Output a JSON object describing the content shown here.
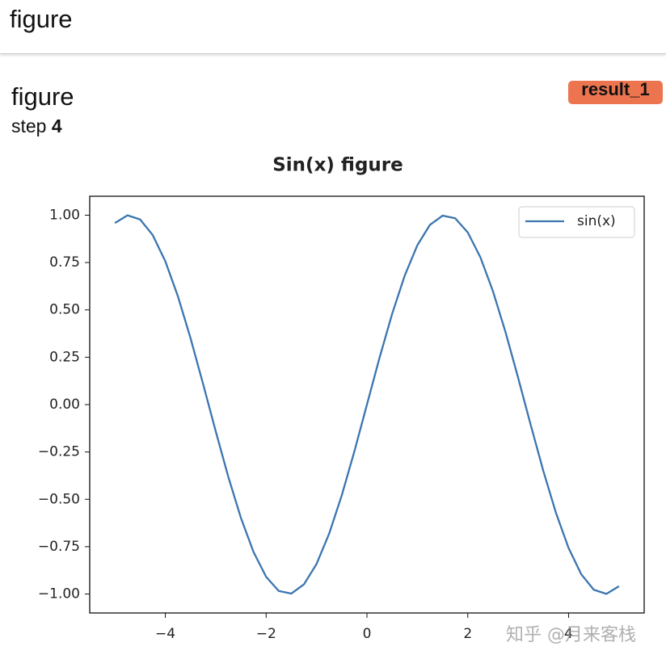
{
  "header": {
    "title": "figure"
  },
  "card": {
    "title": "figure",
    "step_label": "step",
    "step": 4,
    "tag": "result_1"
  },
  "watermark": "知乎 @月来客栈",
  "chart_data": {
    "type": "line",
    "title": "Sin(x) figure",
    "x": [
      -5,
      -4.75,
      -4.5,
      -4.25,
      -4,
      -3.75,
      -3.5,
      -3.25,
      -3,
      -2.75,
      -2.5,
      -2.25,
      -2,
      -1.75,
      -1.5,
      -1.25,
      -1,
      -0.75,
      -0.5,
      -0.25,
      0,
      0.25,
      0.5,
      0.75,
      1,
      1.25,
      1.5,
      1.75,
      2,
      2.25,
      2.5,
      2.75,
      3,
      3.25,
      3.5,
      3.75,
      4,
      4.25,
      4.5,
      4.75,
      5
    ],
    "series": [
      {
        "name": "sin(x)",
        "color": "#3b75af",
        "values": [
          0.9589,
          0.9993,
          0.9775,
          0.895,
          0.7568,
          0.5716,
          0.3508,
          0.1082,
          -0.1411,
          -0.3817,
          -0.5985,
          -0.7781,
          -0.9093,
          -0.984,
          -0.9975,
          -0.949,
          -0.8415,
          -0.6816,
          -0.4794,
          -0.2474,
          0,
          0.2474,
          0.4794,
          0.6816,
          0.8415,
          0.949,
          0.9975,
          0.984,
          0.9093,
          0.7781,
          0.5985,
          0.3817,
          0.1411,
          -0.1082,
          -0.3508,
          -0.5716,
          -0.7568,
          -0.895,
          -0.9775,
          -0.9993,
          -0.9589
        ]
      }
    ],
    "xlim": [
      -5.5,
      5.5
    ],
    "ylim": [
      -1.1,
      1.1
    ],
    "xticks": [
      {
        "value": -4,
        "label": "−4"
      },
      {
        "value": -2,
        "label": "−2"
      },
      0,
      2,
      4
    ],
    "yticks": [
      {
        "value": -1,
        "label": "−1.00"
      },
      {
        "value": -0.75,
        "label": "−0.75"
      },
      {
        "value": -0.5,
        "label": "−0.50"
      },
      {
        "value": -0.25,
        "label": "−0.25"
      },
      {
        "value": 0,
        "label": "0.00"
      },
      {
        "value": 0.25,
        "label": "0.25"
      },
      {
        "value": 0.5,
        "label": "0.50"
      },
      {
        "value": 0.75,
        "label": "0.75"
      },
      {
        "value": 1,
        "label": "1.00"
      }
    ],
    "grid": false,
    "legend": "upper-right"
  }
}
